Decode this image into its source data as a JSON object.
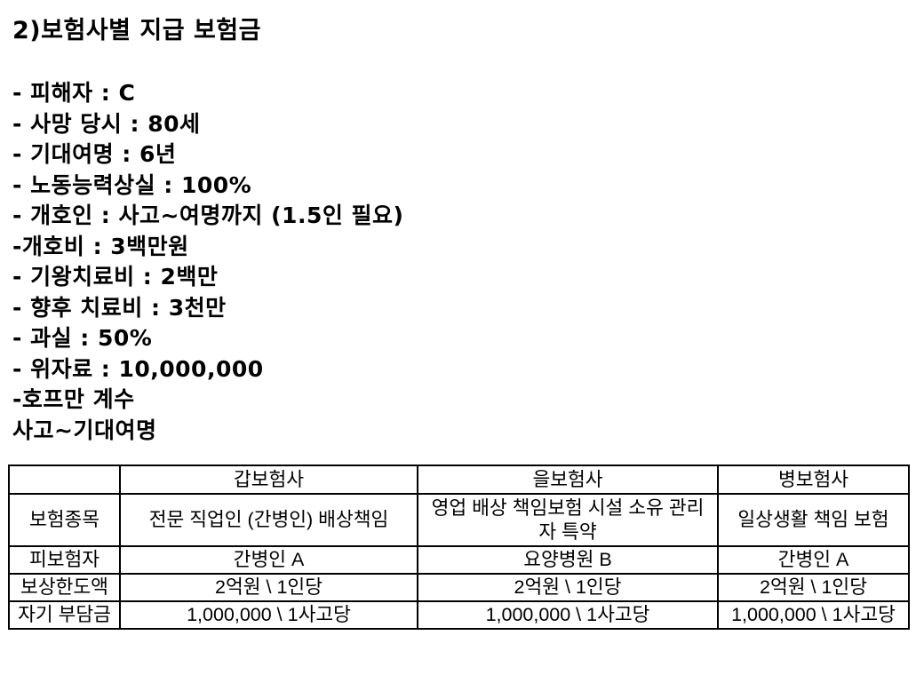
{
  "colors": {
    "background": "#ffffff",
    "text": "#000000",
    "table_border": "#000000"
  },
  "title": "2)보험사별 지급 보험금",
  "notes": [
    "- 피해자 : C",
    "- 사망 당시 : 80세",
    "- 기대여명 : 6년",
    "- 노동능력상실 : 100%",
    "- 개호인 : 사고~여명까지 (1.5인 필요)",
    "-개호비 : 3백만원",
    "- 기왕치료비 : 2백만",
    "- 향후 치료비 : 3천만",
    "- 과실 : 50%",
    "- 위자료 : 10,000,000",
    "-호프만 계수",
    "사고~기대여명"
  ],
  "table": {
    "column_headers": [
      "",
      "갑보험사",
      "을보험사",
      "병보험사"
    ],
    "rows": [
      {
        "label": "보험종목",
        "values": [
          "전문 직업인 (간병인) 배상책임",
          "영업 배상 책임보험 시설 소유 관리자 특약",
          "일상생활 책임 보험"
        ]
      },
      {
        "label": "피보험자",
        "values": [
          "간병인 A",
          "요양병원 B",
          "간병인 A"
        ]
      },
      {
        "label": "보상한도액",
        "values": [
          "2억원 \\ 1인당",
          "2억원 \\ 1인당",
          "2억원 \\ 1인당"
        ]
      },
      {
        "label": "자기 부담금",
        "values": [
          "1,000,000 \\ 1사고당",
          "1,000,000 \\ 1사고당",
          "1,000,000 \\ 1사고당"
        ]
      }
    ]
  }
}
